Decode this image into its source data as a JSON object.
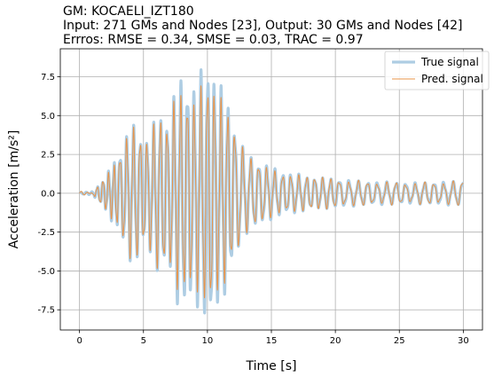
{
  "chart_data": {
    "type": "line",
    "title_lines": [
      "GM: KOCAELI_IZT180",
      "Input: 271 GMs and Nodes [23], Output: 30 GMs and Nodes [42]",
      "Errros: RMSE = 0.34, SMSE = 0.03, TRAC = 0.97"
    ],
    "xlabel": "Time [s]",
    "ylabel": "Acceleration [m/s²]",
    "xlim": [
      -1.5,
      31.5
    ],
    "ylim": [
      -8.8,
      9.3
    ],
    "xticks": [
      0,
      5,
      10,
      15,
      20,
      25,
      30
    ],
    "yticks": [
      -7.5,
      -5.0,
      -2.5,
      0.0,
      2.5,
      5.0,
      7.5
    ],
    "grid": true,
    "legend_position": "top-right",
    "series": [
      {
        "name": "True signal",
        "color": "#aecde3",
        "style": "thick"
      },
      {
        "name": "Pred. signal",
        "color": "#e8944a",
        "style": "thin"
      }
    ],
    "envelope": {
      "t": [
        0,
        1,
        1.5,
        2,
        2.5,
        3,
        3.5,
        4,
        4.5,
        5,
        5.5,
        6,
        6.5,
        7,
        7.5,
        8,
        8.5,
        9,
        9.5,
        10,
        10.3,
        10.6,
        11,
        11.5,
        12,
        12.5,
        13,
        14,
        15,
        16,
        17,
        18,
        20,
        22,
        24,
        26,
        28,
        30
      ],
      "amp": [
        0.05,
        0.1,
        0.5,
        1.0,
        1.7,
        2.3,
        3.3,
        4.2,
        4.2,
        3.2,
        3.6,
        4.8,
        5.0,
        4.4,
        6.5,
        7.3,
        7.1,
        6.4,
        7.6,
        8.1,
        8.4,
        7.0,
        6.6,
        6.2,
        4.5,
        3.3,
        2.5,
        2.0,
        1.6,
        1.3,
        1.2,
        1.0,
        0.9,
        0.75,
        0.7,
        0.65,
        0.7,
        0.75
      ]
    }
  }
}
